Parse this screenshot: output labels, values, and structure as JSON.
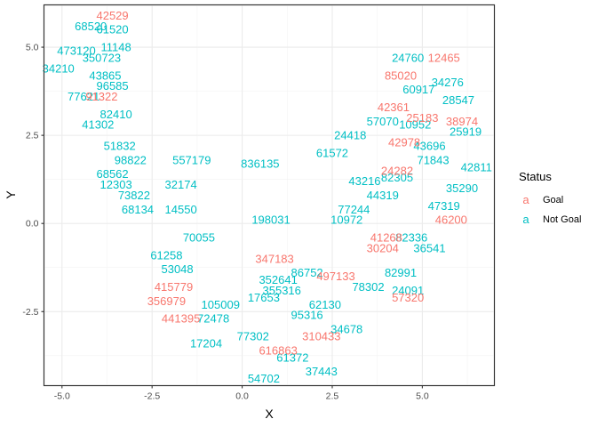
{
  "chart_data": {
    "type": "scatter",
    "title": "",
    "xlabel": "X",
    "ylabel": "Y",
    "xlim": [
      -5.5,
      7.0
    ],
    "ylim": [
      -4.6,
      6.2
    ],
    "x_ticks": [
      -5.0,
      -2.5,
      0.0,
      2.5,
      5.0
    ],
    "x_tick_labels": [
      "-5.0",
      "-2.5",
      "0.0",
      "2.5",
      "5.0"
    ],
    "y_ticks": [
      -2.5,
      0.0,
      2.5,
      5.0
    ],
    "y_tick_labels": [
      "-2.5",
      "0.0",
      "2.5",
      "5.0"
    ],
    "grid": true,
    "legend": {
      "title": "Status",
      "position": "right",
      "key_glyph": "a",
      "entries": [
        {
          "label": "Goal",
          "color": "#F8766D"
        },
        {
          "label": "Not Goal",
          "color": "#00BFC4"
        }
      ]
    },
    "series": [
      {
        "name": "Goal",
        "color": "#F8766D",
        "points": [
          {
            "x": -3.6,
            "y": 5.9,
            "label": "42529"
          },
          {
            "x": 5.6,
            "y": 4.7,
            "label": "12465"
          },
          {
            "x": 4.4,
            "y": 4.2,
            "label": "85020"
          },
          {
            "x": 4.2,
            "y": 3.3,
            "label": "42361"
          },
          {
            "x": 6.1,
            "y": 2.9,
            "label": "38974"
          },
          {
            "x": 5.0,
            "y": 3.0,
            "label": "25183"
          },
          {
            "x": 4.5,
            "y": 2.3,
            "label": "42978"
          },
          {
            "x": 4.3,
            "y": 1.5,
            "label": "24282"
          },
          {
            "x": 5.8,
            "y": 0.1,
            "label": "46200"
          },
          {
            "x": 4.0,
            "y": -0.4,
            "label": "41268"
          },
          {
            "x": 3.9,
            "y": -0.7,
            "label": "30204"
          },
          {
            "x": -1.9,
            "y": -1.8,
            "label": "415779"
          },
          {
            "x": -2.1,
            "y": -2.2,
            "label": "356979"
          },
          {
            "x": -1.7,
            "y": -2.7,
            "label": "441395"
          },
          {
            "x": 0.9,
            "y": -1.0,
            "label": "347183"
          },
          {
            "x": 2.6,
            "y": -1.5,
            "label": "497133"
          },
          {
            "x": 1.0,
            "y": -3.6,
            "label": "616863"
          },
          {
            "x": 2.2,
            "y": -3.2,
            "label": "310433"
          },
          {
            "x": -3.9,
            "y": 3.6,
            "label": "91322"
          },
          {
            "x": 4.6,
            "y": -2.1,
            "label": "57320"
          }
        ]
      },
      {
        "name": "Not Goal",
        "color": "#00BFC4",
        "points": [
          {
            "x": -4.6,
            "y": 4.9,
            "label": "473120"
          },
          {
            "x": -3.9,
            "y": 4.7,
            "label": "350723"
          },
          {
            "x": -3.5,
            "y": 5.0,
            "label": "11148"
          },
          {
            "x": -3.6,
            "y": 5.5,
            "label": "61520"
          },
          {
            "x": -4.2,
            "y": 5.6,
            "label": "68520"
          },
          {
            "x": -5.1,
            "y": 4.4,
            "label": "34210"
          },
          {
            "x": -3.8,
            "y": 4.2,
            "label": "43865"
          },
          {
            "x": -3.6,
            "y": 3.9,
            "label": "96585"
          },
          {
            "x": -3.5,
            "y": 3.1,
            "label": "82410"
          },
          {
            "x": -4.4,
            "y": 3.6,
            "label": "77621"
          },
          {
            "x": -4.0,
            "y": 2.8,
            "label": "41302"
          },
          {
            "x": -3.4,
            "y": 2.2,
            "label": "51832"
          },
          {
            "x": -3.1,
            "y": 1.8,
            "label": "98822"
          },
          {
            "x": -3.6,
            "y": 1.4,
            "label": "68562"
          },
          {
            "x": -3.5,
            "y": 1.1,
            "label": "12303"
          },
          {
            "x": -3.0,
            "y": 0.8,
            "label": "73822"
          },
          {
            "x": -2.9,
            "y": 0.4,
            "label": "68134"
          },
          {
            "x": -1.4,
            "y": 1.8,
            "label": "557179"
          },
          {
            "x": -1.7,
            "y": 1.1,
            "label": "32174"
          },
          {
            "x": 0.5,
            "y": 1.7,
            "label": "836135"
          },
          {
            "x": 0.8,
            "y": 0.1,
            "label": "198031"
          },
          {
            "x": -1.7,
            "y": 0.4,
            "label": "14550"
          },
          {
            "x": -1.2,
            "y": -0.4,
            "label": "70055"
          },
          {
            "x": -2.1,
            "y": -0.9,
            "label": "61258"
          },
          {
            "x": -1.8,
            "y": -1.3,
            "label": "53048"
          },
          {
            "x": 1.0,
            "y": -1.6,
            "label": "352641"
          },
          {
            "x": 1.8,
            "y": -1.4,
            "label": "86752"
          },
          {
            "x": 1.1,
            "y": -1.9,
            "label": "355316"
          },
          {
            "x": 0.6,
            "y": -2.1,
            "label": "17653"
          },
          {
            "x": -0.6,
            "y": -2.3,
            "label": "105009"
          },
          {
            "x": -0.8,
            "y": -2.7,
            "label": "72478"
          },
          {
            "x": 1.8,
            "y": -2.6,
            "label": "95316"
          },
          {
            "x": 2.3,
            "y": -2.3,
            "label": "62130"
          },
          {
            "x": 2.9,
            "y": -3.0,
            "label": "34678"
          },
          {
            "x": -1.0,
            "y": -3.4,
            "label": "17204"
          },
          {
            "x": 0.3,
            "y": -3.2,
            "label": "77302"
          },
          {
            "x": 1.4,
            "y": -3.8,
            "label": "61372"
          },
          {
            "x": 0.6,
            "y": -4.4,
            "label": "54702"
          },
          {
            "x": 2.2,
            "y": -4.2,
            "label": "37443"
          },
          {
            "x": 3.5,
            "y": -1.8,
            "label": "78302"
          },
          {
            "x": 4.4,
            "y": -1.4,
            "label": "82991"
          },
          {
            "x": 4.6,
            "y": -1.9,
            "label": "24091"
          },
          {
            "x": 5.2,
            "y": -0.7,
            "label": "36541"
          },
          {
            "x": 4.7,
            "y": -0.4,
            "label": "82336"
          },
          {
            "x": 5.6,
            "y": 0.5,
            "label": "47319"
          },
          {
            "x": 3.1,
            "y": 0.4,
            "label": "77244"
          },
          {
            "x": 2.9,
            "y": 0.1,
            "label": "10972"
          },
          {
            "x": 3.9,
            "y": 0.8,
            "label": "44319"
          },
          {
            "x": 4.3,
            "y": 1.3,
            "label": "82305"
          },
          {
            "x": 3.4,
            "y": 1.2,
            "label": "43216"
          },
          {
            "x": 2.5,
            "y": 2.0,
            "label": "61572"
          },
          {
            "x": 3.0,
            "y": 2.5,
            "label": "24418"
          },
          {
            "x": 3.9,
            "y": 2.9,
            "label": "57070"
          },
          {
            "x": 4.8,
            "y": 2.8,
            "label": "10952"
          },
          {
            "x": 5.2,
            "y": 2.2,
            "label": "43696"
          },
          {
            "x": 6.2,
            "y": 2.6,
            "label": "25919"
          },
          {
            "x": 6.5,
            "y": 1.6,
            "label": "42811"
          },
          {
            "x": 6.1,
            "y": 1.0,
            "label": "35290"
          },
          {
            "x": 5.3,
            "y": 1.8,
            "label": "71843"
          },
          {
            "x": 4.9,
            "y": 3.8,
            "label": "60917"
          },
          {
            "x": 5.7,
            "y": 4.0,
            "label": "34276"
          },
          {
            "x": 4.6,
            "y": 4.7,
            "label": "24760"
          },
          {
            "x": 6.0,
            "y": 3.5,
            "label": "28547"
          }
        ]
      }
    ]
  }
}
